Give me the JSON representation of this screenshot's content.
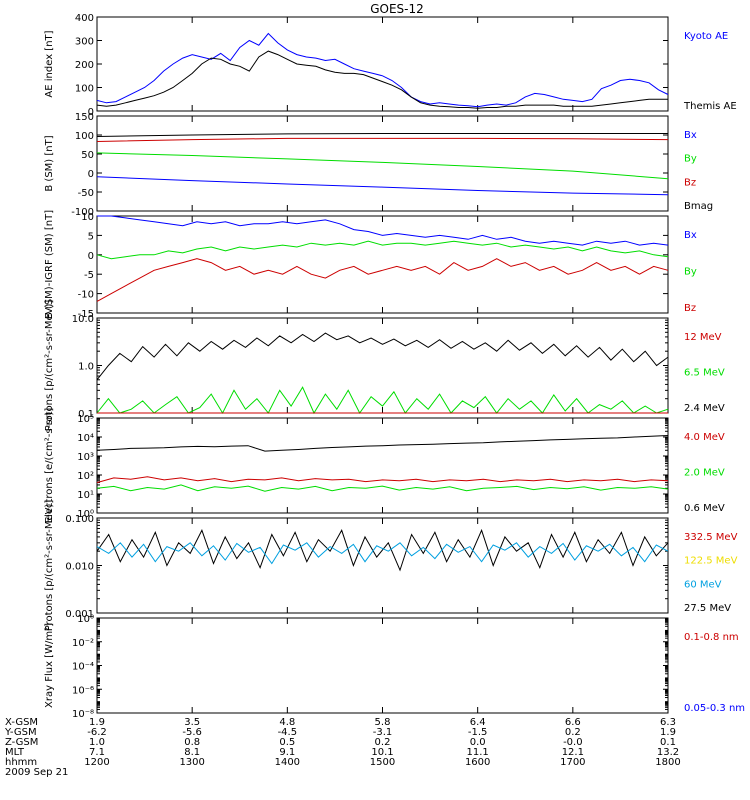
{
  "title": "GOES-12",
  "colors": {
    "black": "#000000",
    "blue": "#0000ff",
    "red": "#cc0000",
    "green": "#00dd00",
    "yellow": "#eedd00",
    "cyan": "#00a0e0"
  },
  "chart_data": {
    "type": "line",
    "title": "GOES-12",
    "x_ticks": [
      "1200",
      "1300",
      "1400",
      "1500",
      "1600",
      "1700",
      "1800"
    ],
    "panels": [
      {
        "ylabel": "AE index [nT]",
        "yscale": "linear",
        "ylim": [
          0,
          400
        ],
        "tick_labels": [
          "400",
          "300",
          "200",
          "100",
          "0"
        ],
        "legend": [
          {
            "name": "Kyoto AE",
            "color": "blue"
          },
          {
            "name": "Themis AE",
            "color": "black"
          }
        ],
        "series": [
          {
            "name": "Kyoto AE",
            "color": "blue",
            "values": [
              45,
              35,
              40,
              60,
              80,
              100,
              130,
              170,
              200,
              225,
              240,
              230,
              220,
              245,
              215,
              270,
              300,
              280,
              330,
              290,
              260,
              240,
              230,
              225,
              215,
              220,
              200,
              180,
              170,
              160,
              150,
              130,
              100,
              60,
              40,
              30,
              35,
              30,
              25,
              22,
              18,
              25,
              30,
              25,
              35,
              60,
              75,
              70,
              60,
              50,
              45,
              40,
              50,
              95,
              110,
              130,
              135,
              130,
              120,
              90,
              70
            ]
          },
          {
            "name": "Themis AE",
            "color": "black",
            "values": [
              25,
              20,
              25,
              35,
              45,
              55,
              65,
              80,
              100,
              130,
              160,
              200,
              225,
              220,
              200,
              190,
              170,
              230,
              255,
              240,
              220,
              200,
              195,
              190,
              175,
              165,
              160,
              160,
              155,
              140,
              125,
              110,
              90,
              60,
              35,
              25,
              20,
              18,
              15,
              15,
              12,
              15,
              15,
              20,
              20,
              25,
              25,
              25,
              25,
              20,
              20,
              20,
              20,
              25,
              30,
              35,
              40,
              45,
              50,
              50,
              50
            ]
          }
        ]
      },
      {
        "ylabel": "B (SM) [nT]",
        "yscale": "linear",
        "ylim": [
          -100,
          150
        ],
        "tick_labels": [
          "150",
          "100",
          "50",
          "0",
          "-50",
          "-100"
        ],
        "legend": [
          {
            "name": "Bx",
            "color": "blue"
          },
          {
            "name": "By",
            "color": "green"
          },
          {
            "name": "Bz",
            "color": "red"
          },
          {
            "name": "Bmag",
            "color": "black"
          }
        ],
        "series": [
          {
            "name": "Bmag",
            "color": "black",
            "values": [
              96,
              100,
              103,
              104,
              104,
              104,
              104
            ]
          },
          {
            "name": "Bz",
            "color": "red",
            "values": [
              83,
              88,
              91,
              91,
              91,
              90,
              88
            ]
          },
          {
            "name": "By",
            "color": "green",
            "values": [
              53,
              46,
              37,
              28,
              17,
              5,
              -15
            ]
          },
          {
            "name": "Bx",
            "color": "blue",
            "values": [
              -10,
              -20,
              -29,
              -37,
              -46,
              -53,
              -57
            ]
          }
        ]
      },
      {
        "ylabel": "B (SM)-IGRF (SM) [nT]",
        "yscale": "linear",
        "ylim": [
          -15,
          10
        ],
        "tick_labels": [
          "10",
          "5",
          "0",
          "-5",
          "-10",
          "-15"
        ],
        "legend": [
          {
            "name": "Bx",
            "color": "blue"
          },
          {
            "name": "By",
            "color": "green"
          },
          {
            "name": "Bz",
            "color": "red"
          }
        ],
        "series": [
          {
            "name": "Bx",
            "color": "blue",
            "values": [
              10,
              10,
              9.5,
              9,
              8.5,
              8,
              7.5,
              8.5,
              8,
              8.5,
              7.5,
              8,
              8,
              8.5,
              8,
              8.5,
              9,
              8,
              6.5,
              6,
              5,
              5.5,
              5,
              4.5,
              5,
              4.5,
              4,
              5,
              4,
              4.5,
              3.5,
              3,
              3.5,
              3,
              2.5,
              3.5,
              3,
              3.5,
              2.5,
              3,
              2.5
            ]
          },
          {
            "name": "By",
            "color": "green",
            "values": [
              0,
              -1,
              -0.5,
              0,
              0,
              1,
              0.5,
              1.5,
              2,
              1,
              2,
              1.5,
              2,
              2.5,
              2,
              3,
              2.5,
              3,
              2.5,
              3.5,
              2.5,
              3,
              3,
              2.5,
              3,
              3.5,
              3,
              2.5,
              3,
              2,
              2.5,
              2,
              1.5,
              2,
              1,
              2,
              1,
              0.5,
              1,
              0,
              -0.5
            ]
          },
          {
            "name": "Bz",
            "color": "red",
            "values": [
              -12,
              -10,
              -8,
              -6,
              -4,
              -3,
              -2,
              -1,
              -2,
              -4,
              -3,
              -5,
              -4,
              -5,
              -3,
              -5,
              -6,
              -4,
              -3,
              -5,
              -4,
              -3,
              -4,
              -3,
              -5,
              -2,
              -4,
              -3,
              -1,
              -3,
              -2,
              -4,
              -3,
              -5,
              -4,
              -2,
              -4,
              -3,
              -5,
              -3,
              -4
            ]
          }
        ]
      },
      {
        "ylabel": "Protons [p/(cm²-s-sr-MeV)]",
        "yscale": "log",
        "ylim": [
          0.1,
          10.0
        ],
        "tick_labels": [
          "10.0",
          "1.0",
          "0.1"
        ],
        "legend": [
          {
            "name": "12 MeV",
            "color": "red"
          },
          {
            "name": "6.5 MeV",
            "color": "green"
          },
          {
            "name": "2.4 MeV",
            "color": "black"
          }
        ],
        "series": [
          {
            "name": "2.4 MeV",
            "color": "black",
            "values": [
              0.5,
              1.0,
              1.8,
              1.2,
              2.5,
              1.5,
              2.8,
              1.6,
              3.0,
              2.0,
              3.2,
              2.2,
              3.4,
              2.4,
              3.8,
              2.6,
              4.2,
              3.0,
              4.5,
              3.2,
              4.8,
              3.5,
              4.2,
              3.0,
              3.8,
              2.8,
              3.6,
              2.6,
              3.4,
              2.4,
              3.5,
              2.3,
              3.2,
              2.2,
              3.0,
              2.0,
              3.4,
              2.1,
              3.0,
              1.8,
              2.8,
              1.6,
              2.6,
              1.5,
              2.4,
              1.3,
              2.2,
              1.2,
              2.0,
              1.0,
              1.5
            ]
          },
          {
            "name": "6.5 MeV",
            "color": "green",
            "values": [
              0.1,
              0.2,
              0.1,
              0.12,
              0.18,
              0.1,
              0.15,
              0.22,
              0.1,
              0.13,
              0.25,
              0.1,
              0.3,
              0.12,
              0.2,
              0.1,
              0.3,
              0.14,
              0.35,
              0.1,
              0.25,
              0.12,
              0.3,
              0.1,
              0.22,
              0.14,
              0.28,
              0.1,
              0.2,
              0.12,
              0.25,
              0.1,
              0.18,
              0.13,
              0.22,
              0.1,
              0.2,
              0.12,
              0.18,
              0.1,
              0.24,
              0.11,
              0.2,
              0.1,
              0.15,
              0.12,
              0.18,
              0.1,
              0.14,
              0.1,
              0.12
            ]
          },
          {
            "name": "12 MeV",
            "color": "red",
            "values": [
              0.1,
              0.1,
              0.1,
              0.1,
              0.1,
              0.1,
              0.1,
              0.1,
              0.1,
              0.1,
              0.1,
              0.1,
              0.1,
              0.1,
              0.1,
              0.1,
              0.1,
              0.1,
              0.1,
              0.1,
              0.1,
              0.1,
              0.1,
              0.1,
              0.1,
              0.1,
              0.1,
              0.1,
              0.1,
              0.1,
              0.1,
              0.1,
              0.1,
              0.1,
              0.1,
              0.1,
              0.1,
              0.1,
              0.1,
              0.1,
              0.1,
              0.1,
              0.1,
              0.1,
              0.1,
              0.1,
              0.1,
              0.1,
              0.1,
              0.1,
              0.1
            ]
          }
        ]
      },
      {
        "ylabel": "Electrons [e/(cm²-s-sr)]",
        "yscale": "log",
        "ylim": [
          1,
          100000
        ],
        "tick_labels": [
          "10⁵",
          "10⁴",
          "10³",
          "10²",
          "10¹",
          "10⁰"
        ],
        "legend": [
          {
            "name": "4.0 MeV",
            "color": "red"
          },
          {
            "name": "2.0 MeV",
            "color": "green"
          },
          {
            "name": "0.6 MeV",
            "color": "black"
          }
        ],
        "series": [
          {
            "name": "0.6 MeV",
            "color": "black",
            "values": [
              2000,
              2200,
              2500,
              2600,
              2700,
              3000,
              3200,
              3100,
              3300,
              3500,
              1800,
              2000,
              2200,
              2500,
              2800,
              3000,
              3300,
              3500,
              3800,
              4000,
              4200,
              4500,
              4800,
              5000,
              5500,
              6000,
              6500,
              7000,
              7500,
              8000,
              8500,
              9000,
              10000,
              11000,
              12000
            ]
          },
          {
            "name": "4.0 MeV",
            "color": "red",
            "values": [
              40,
              70,
              60,
              80,
              55,
              70,
              50,
              65,
              45,
              60,
              55,
              70,
              50,
              65,
              55,
              60,
              45,
              55,
              50,
              60,
              45,
              55,
              50,
              60,
              45,
              55,
              50,
              60,
              45,
              55,
              50,
              60,
              45,
              55,
              50
            ]
          },
          {
            "name": "2.0 MeV",
            "color": "green",
            "values": [
              20,
              25,
              15,
              22,
              18,
              30,
              15,
              24,
              20,
              26,
              14,
              22,
              18,
              25,
              15,
              22,
              20,
              26,
              16,
              22,
              18,
              24,
              15,
              20,
              22,
              25,
              17,
              22,
              19,
              24,
              16,
              22,
              20,
              24,
              18
            ]
          }
        ]
      },
      {
        "ylabel": "Protons [p/(cm²-s-sr-MeV)]",
        "yscale": "log",
        "ylim": [
          0.001,
          0.1
        ],
        "tick_labels": [
          "0.100",
          "0.010",
          "0.001"
        ],
        "legend": [
          {
            "name": "332.5 MeV",
            "color": "red"
          },
          {
            "name": "122.5 MeV",
            "color": "yellow"
          },
          {
            "name": "60 MeV",
            "color": "cyan"
          },
          {
            "name": "27.5 MeV",
            "color": "black"
          }
        ],
        "series": [
          {
            "name": "27.5 MeV",
            "color": "black",
            "values": [
              0.02,
              0.045,
              0.012,
              0.035,
              0.015,
              0.05,
              0.01,
              0.03,
              0.018,
              0.055,
              0.011,
              0.04,
              0.014,
              0.03,
              0.009,
              0.045,
              0.016,
              0.05,
              0.012,
              0.035,
              0.02,
              0.055,
              0.01,
              0.04,
              0.015,
              0.03,
              0.008,
              0.045,
              0.018,
              0.05,
              0.012,
              0.035,
              0.015,
              0.055,
              0.01,
              0.04,
              0.02,
              0.03,
              0.009,
              0.045,
              0.015,
              0.05,
              0.012,
              0.035,
              0.018,
              0.05,
              0.01,
              0.04,
              0.016,
              0.03
            ]
          },
          {
            "name": "60 MeV",
            "color": "cyan",
            "values": [
              0.025,
              0.018,
              0.03,
              0.015,
              0.028,
              0.012,
              0.025,
              0.02,
              0.03,
              0.016,
              0.026,
              0.013,
              0.029,
              0.019,
              0.024,
              0.011,
              0.027,
              0.021,
              0.03,
              0.015,
              0.025,
              0.018,
              0.028,
              0.012,
              0.026,
              0.02,
              0.03,
              0.016,
              0.024,
              0.014,
              0.028,
              0.019,
              0.025,
              0.012,
              0.027,
              0.021,
              0.03,
              0.015,
              0.025,
              0.018,
              0.029,
              0.013,
              0.026,
              0.02,
              0.028,
              0.016,
              0.024,
              0.012,
              0.027,
              0.02
            ]
          }
        ]
      },
      {
        "ylabel": "Xray Flux [W/m²]",
        "yscale": "log",
        "ylim": [
          1e-08,
          1
        ],
        "tick_labels": [
          "10⁰",
          "10⁻²",
          "10⁻⁴",
          "10⁻⁶",
          "10⁻⁸"
        ],
        "legend": [
          {
            "name": "0.1-0.8 nm",
            "color": "red"
          },
          {
            "name": "0.05-0.3 nm",
            "color": "blue"
          }
        ],
        "series": []
      }
    ],
    "ephemeris": {
      "rows": [
        {
          "label": "X-GSM",
          "values": [
            "1.9",
            "3.5",
            "4.8",
            "5.8",
            "6.4",
            "6.6",
            "6.3"
          ]
        },
        {
          "label": "Y-GSM",
          "values": [
            "-6.2",
            "-5.6",
            "-4.5",
            "-3.1",
            "-1.5",
            "0.2",
            "1.9"
          ]
        },
        {
          "label": "Z-GSM",
          "values": [
            "1.0",
            "0.8",
            "0.5",
            "0.2",
            "0.0",
            "-0.0",
            "0.1"
          ]
        },
        {
          "label": "MLT",
          "values": [
            "7.1",
            "8.1",
            "9.1",
            "10.1",
            "11.1",
            "12.1",
            "13.2"
          ]
        },
        {
          "label": "hhmm",
          "values": [
            "1200",
            "1300",
            "1400",
            "1500",
            "1600",
            "1700",
            "1800"
          ]
        }
      ],
      "date": "2009 Sep 21"
    }
  }
}
